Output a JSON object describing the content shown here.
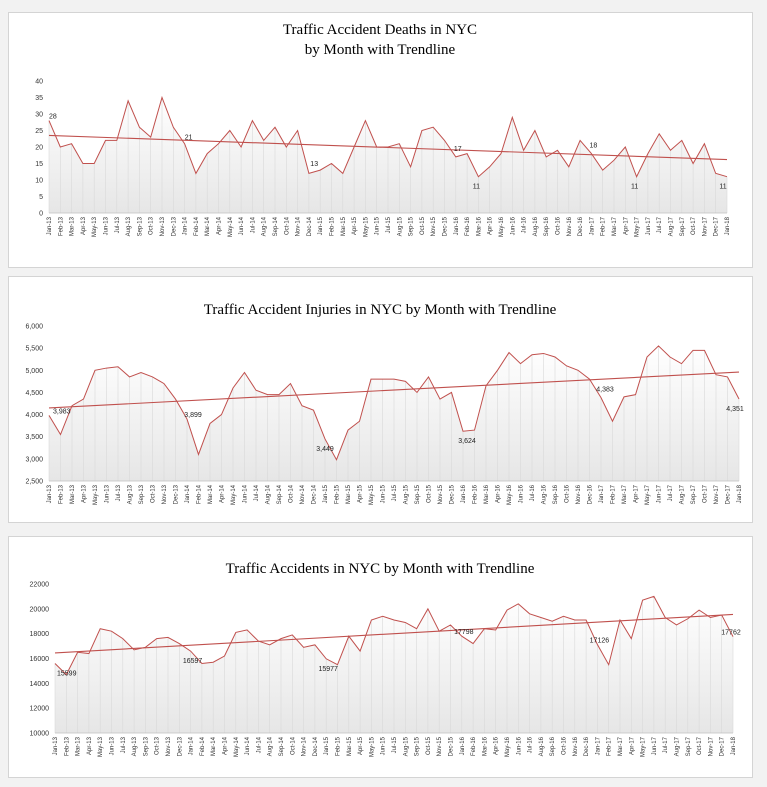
{
  "chart_data": [
    {
      "type": "area",
      "title_lines": [
        "Traffic Accident Deaths in NYC",
        "by Month with  Trendline"
      ],
      "categories": [
        "Jan-13",
        "Feb-13",
        "Mar-13",
        "Apr-13",
        "May-13",
        "Jun-13",
        "Jul-13",
        "Aug-13",
        "Sep-13",
        "Oct-13",
        "Nov-13",
        "Dec-13",
        "Jan-14",
        "Feb-14",
        "Mar-14",
        "Apr-14",
        "May-14",
        "Jun-14",
        "Jul-14",
        "Aug-14",
        "Sep-14",
        "Oct-14",
        "Nov-14",
        "Dec-14",
        "Jan-15",
        "Feb-15",
        "Mar-15",
        "Apr-15",
        "May-15",
        "Jun-15",
        "Jul-15",
        "Aug-15",
        "Sep-15",
        "Oct-15",
        "Nov-15",
        "Dec-15",
        "Jan-16",
        "Feb-16",
        "Mar-16",
        "Apr-16",
        "May-16",
        "Jun-16",
        "Jul-16",
        "Aug-16",
        "Sep-16",
        "Oct-16",
        "Nov-16",
        "Dec-16",
        "Jan-17",
        "Feb-17",
        "Mar-17",
        "Apr-17",
        "May-17",
        "Jun-17",
        "Jul-17",
        "Aug-17",
        "Sep-17",
        "Oct-17",
        "Nov-17",
        "Dec-17",
        "Jan-18"
      ],
      "values": [
        28,
        20,
        21,
        15,
        15,
        22,
        22,
        34,
        26,
        23,
        35,
        26,
        21,
        12,
        18,
        21,
        25,
        20,
        28,
        22,
        26,
        20,
        25,
        12,
        13,
        15,
        12,
        20,
        28,
        20,
        20,
        21,
        14,
        25,
        26,
        22,
        17,
        18,
        11,
        14,
        18,
        29,
        19,
        25,
        17,
        19,
        14,
        22,
        18,
        13,
        16,
        20,
        11,
        18,
        24,
        19,
        22,
        15,
        21,
        12,
        11
      ],
      "data_labels": [
        {
          "index": 0,
          "text": "28"
        },
        {
          "index": 12,
          "text": "21"
        },
        {
          "index": 24,
          "text": "13"
        },
        {
          "index": 36,
          "text": "17"
        },
        {
          "index": 38,
          "text": "11"
        },
        {
          "index": 48,
          "text": "18"
        },
        {
          "index": 52,
          "text": "11"
        },
        {
          "index": 60,
          "text": "11"
        }
      ],
      "trend": [
        23.5,
        16.2
      ],
      "ylim": [
        0,
        40
      ],
      "yticks": [
        0,
        5,
        10,
        15,
        20,
        25,
        30,
        35,
        40
      ],
      "ytick_labels": [
        "0",
        "5",
        "10",
        "15",
        "20",
        "25",
        "30",
        "35",
        "40"
      ],
      "color": "#c0504d"
    },
    {
      "type": "area",
      "title_lines": [
        "Traffic Accident Injuries in NYC  by Month with  Trendline"
      ],
      "categories": [
        "Jan-13",
        "Feb-13",
        "Mar-13",
        "Apr-13",
        "May-13",
        "Jun-13",
        "Jul-13",
        "Aug-13",
        "Sep-13",
        "Oct-13",
        "Nov-13",
        "Dec-13",
        "Jan-14",
        "Feb-14",
        "Mar-14",
        "Apr-14",
        "May-14",
        "Jun-14",
        "Jul-14",
        "Aug-14",
        "Sep-14",
        "Oct-14",
        "Nov-14",
        "Dec-14",
        "Jan-15",
        "Feb-15",
        "Mar-15",
        "Apr-15",
        "May-15",
        "Jun-15",
        "Jul-15",
        "Aug-15",
        "Sep-15",
        "Oct-15",
        "Nov-15",
        "Dec-15",
        "Jan-16",
        "Feb-16",
        "Mar-16",
        "Apr-16",
        "May-16",
        "Jun-16",
        "Jul-16",
        "Aug-16",
        "Sep-16",
        "Oct-16",
        "Nov-16",
        "Dec-16",
        "Jan-17",
        "Feb-17",
        "Mar-17",
        "Apr-17",
        "May-17",
        "Jun-17",
        "Jul-17",
        "Aug-17",
        "Sep-17",
        "Oct-17",
        "Nov-17",
        "Dec-17",
        "Jan-18"
      ],
      "values": [
        3983,
        3550,
        4200,
        4350,
        5000,
        5050,
        5080,
        4850,
        4950,
        4850,
        4700,
        4350,
        3899,
        3100,
        3800,
        4000,
        4600,
        4950,
        4550,
        4450,
        4450,
        4700,
        4200,
        4100,
        3449,
        2980,
        3650,
        3850,
        4800,
        4800,
        4800,
        4750,
        4500,
        4850,
        4350,
        4500,
        3624,
        3650,
        4650,
        5000,
        5400,
        5150,
        5350,
        5380,
        5300,
        5100,
        5000,
        4800,
        4383,
        3850,
        4400,
        4450,
        5300,
        5550,
        5300,
        5150,
        5450,
        5450,
        4900,
        4850,
        4351
      ],
      "data_labels": [
        {
          "index": 0,
          "text": "3,983"
        },
        {
          "index": 12,
          "text": "3,899"
        },
        {
          "index": 24,
          "text": "3,449"
        },
        {
          "index": 36,
          "text": "3,624"
        },
        {
          "index": 48,
          "text": "4,383"
        },
        {
          "index": 60,
          "text": "4,351"
        }
      ],
      "trend": [
        4150,
        4960
      ],
      "ylim": [
        2500,
        6000
      ],
      "yticks": [
        2500,
        3000,
        3500,
        4000,
        4500,
        5000,
        5500,
        6000
      ],
      "ytick_labels": [
        "2,500",
        "3,000",
        "3,500",
        "4,000",
        "4,500",
        "5,000",
        "5,500",
        "6,000"
      ],
      "color": "#c0504d"
    },
    {
      "type": "area",
      "title_lines": [
        "Traffic Accidents in NYC  by Month with  Trendline"
      ],
      "categories": [
        "Jan-13",
        "Feb-13",
        "Mar-13",
        "Apr-13",
        "May-13",
        "Jun-13",
        "Jul-13",
        "Aug-13",
        "Sep-13",
        "Oct-13",
        "Nov-13",
        "Dec-13",
        "Jan-14",
        "Feb-14",
        "Mar-14",
        "Apr-14",
        "May-14",
        "Jun-14",
        "Jul-14",
        "Aug-14",
        "Sep-14",
        "Oct-14",
        "Nov-14",
        "Dec-14",
        "Jan-15",
        "Feb-15",
        "Mar-15",
        "Apr-15",
        "May-15",
        "Jun-15",
        "Jul-15",
        "Aug-15",
        "Sep-15",
        "Oct-15",
        "Nov-15",
        "Dec-15",
        "Jan-16",
        "Feb-16",
        "Mar-16",
        "Apr-16",
        "May-16",
        "Jun-16",
        "Jul-16",
        "Aug-16",
        "Sep-16",
        "Oct-16",
        "Nov-16",
        "Dec-16",
        "Jan-17",
        "Feb-17",
        "Mar-17",
        "Apr-17",
        "May-17",
        "Jun-17",
        "Jul-17",
        "Aug-17",
        "Sep-17",
        "Oct-17",
        "Nov-17",
        "Dec-17",
        "Jan-18"
      ],
      "values": [
        15599,
        14700,
        16500,
        16400,
        18400,
        18200,
        17600,
        16700,
        16900,
        17600,
        17700,
        17200,
        16597,
        15600,
        15700,
        16200,
        18100,
        18300,
        17400,
        17100,
        17600,
        17900,
        16900,
        17100,
        15977,
        15500,
        17800,
        16600,
        19100,
        19400,
        19100,
        18900,
        18400,
        20000,
        18200,
        18700,
        17798,
        17200,
        18400,
        18300,
        19900,
        20400,
        19600,
        19300,
        19000,
        19400,
        19100,
        19100,
        17126,
        15500,
        19100,
        17600,
        20700,
        21000,
        19300,
        18700,
        19200,
        19900,
        19300,
        19500,
        17762
      ],
      "data_labels": [
        {
          "index": 0,
          "text": "15599"
        },
        {
          "index": 12,
          "text": "16597"
        },
        {
          "index": 24,
          "text": "15977"
        },
        {
          "index": 36,
          "text": "17798"
        },
        {
          "index": 48,
          "text": "17126"
        },
        {
          "index": 60,
          "text": "17762"
        }
      ],
      "trend": [
        16450,
        19550
      ],
      "ylim": [
        10000,
        22000
      ],
      "yticks": [
        10000,
        12000,
        14000,
        16000,
        18000,
        20000,
        22000
      ],
      "ytick_labels": [
        "10000",
        "12000",
        "14000",
        "16000",
        "18000",
        "20000",
        "22000"
      ],
      "color": "#c0504d"
    }
  ]
}
